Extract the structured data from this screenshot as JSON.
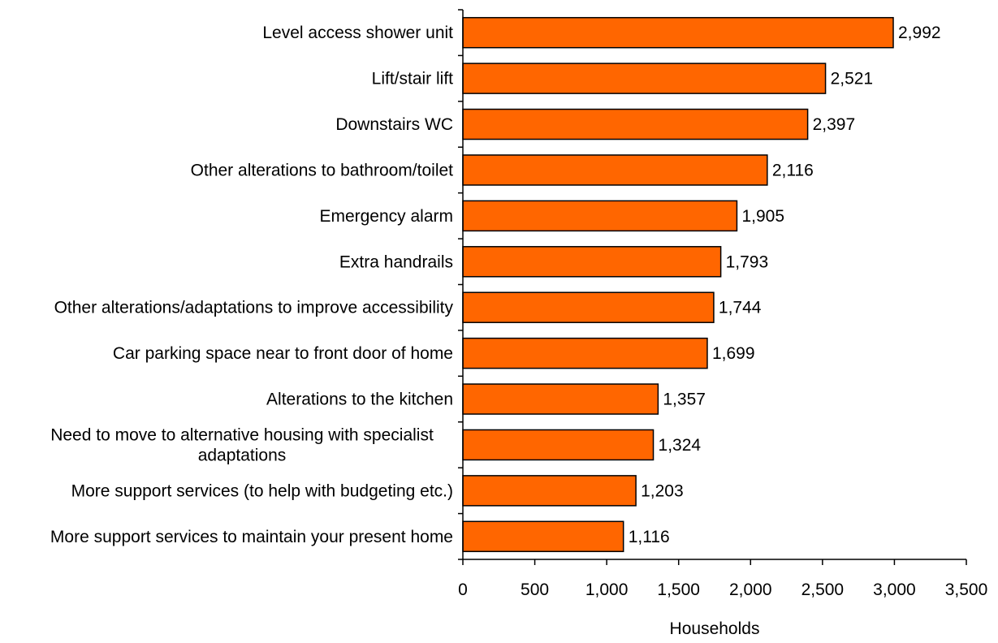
{
  "chart_data": {
    "type": "bar",
    "orientation": "horizontal",
    "categories": [
      [
        "Level access shower unit"
      ],
      [
        "Lift/stair lift"
      ],
      [
        "Downstairs WC"
      ],
      [
        "Other alterations to bathroom/toilet"
      ],
      [
        "Emergency alarm"
      ],
      [
        "Extra handrails"
      ],
      [
        "Other alterations/adaptations to improve accessibility"
      ],
      [
        "Car parking space near to front door of home"
      ],
      [
        "Alterations to the kitchen"
      ],
      [
        "Need to move to alternative housing with specialist",
        "adaptations"
      ],
      [
        "More support services (to help with budgeting etc.)"
      ],
      [
        "More support services to maintain your present home"
      ]
    ],
    "values": [
      2992,
      2521,
      2397,
      2116,
      1905,
      1793,
      1744,
      1699,
      1357,
      1324,
      1203,
      1116
    ],
    "data_labels": [
      "2,992",
      "2,521",
      "2,397",
      "2,116",
      "1,905",
      "1,793",
      "1,744",
      "1,699",
      "1,357",
      "1,324",
      "1,203",
      "1,116"
    ],
    "xlim": [
      0,
      3500
    ],
    "x_ticks": [
      0,
      500,
      1000,
      1500,
      2000,
      2500,
      3000,
      3500
    ],
    "x_tick_labels": [
      "0",
      "500",
      "1,000",
      "1,500",
      "2,000",
      "2,500",
      "3,000",
      "3,500"
    ],
    "xlabel": "Households",
    "ylabel": "",
    "title": "",
    "grid": false,
    "legend": "none",
    "bar_color": "#FF6600",
    "bar_edge_color": "#000000"
  }
}
